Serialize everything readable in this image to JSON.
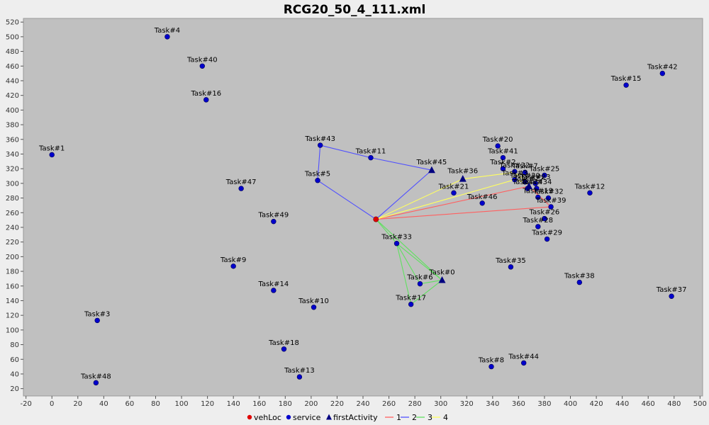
{
  "chart_data": {
    "type": "scatter",
    "title": "RCG20_50_4_111.xml",
    "xlabel": "",
    "ylabel": "",
    "xlim": [
      -22,
      502
    ],
    "ylim": [
      10,
      525
    ],
    "x_ticks": [
      -20,
      0,
      20,
      40,
      60,
      80,
      100,
      120,
      140,
      160,
      180,
      200,
      220,
      240,
      260,
      280,
      300,
      320,
      340,
      360,
      380,
      400,
      420,
      440,
      460,
      480,
      500
    ],
    "y_ticks": [
      20,
      40,
      60,
      80,
      100,
      120,
      140,
      160,
      180,
      200,
      220,
      240,
      260,
      280,
      300,
      320,
      340,
      360,
      380,
      400,
      420,
      440,
      460,
      480,
      500,
      520
    ],
    "grid": false,
    "legend_position": "bottom",
    "colors": {
      "background": "#c0c0c0",
      "vehLoc": "#e00000",
      "service": "#0000cc",
      "firstActivity": "#000080",
      "route_1": "#ff6060",
      "route_2": "#5050ff",
      "route_3": "#60e060",
      "route_4": "#ffff60"
    },
    "legend": [
      {
        "name": "vehLoc",
        "marker": "dot",
        "color": "#e00000"
      },
      {
        "name": "service",
        "marker": "dot",
        "color": "#0000cc"
      },
      {
        "name": "firstActivity",
        "marker": "triangle",
        "color": "#000080"
      },
      {
        "name": "1",
        "marker": "line",
        "color": "#ff6060"
      },
      {
        "name": "2",
        "marker": "line",
        "color": "#5050ff"
      },
      {
        "name": "3",
        "marker": "line",
        "color": "#60e060"
      },
      {
        "name": "4",
        "marker": "line",
        "color": "#ffff60"
      }
    ],
    "vehLoc": {
      "x": 250,
      "y": 251
    },
    "points": [
      {
        "label": "Task#4",
        "x": 89,
        "y": 500
      },
      {
        "label": "Task#40",
        "x": 116,
        "y": 460
      },
      {
        "label": "Task#16",
        "x": 119,
        "y": 414
      },
      {
        "label": "Task#1",
        "x": 0,
        "y": 339
      },
      {
        "label": "Task#43",
        "x": 207,
        "y": 352
      },
      {
        "label": "Task#11",
        "x": 246,
        "y": 335
      },
      {
        "label": "Task#5",
        "x": 205,
        "y": 304
      },
      {
        "label": "Task#47",
        "x": 146,
        "y": 293
      },
      {
        "label": "Task#49",
        "x": 171,
        "y": 248
      },
      {
        "label": "Task#9",
        "x": 140,
        "y": 187
      },
      {
        "label": "Task#14",
        "x": 171,
        "y": 154
      },
      {
        "label": "Task#10",
        "x": 202,
        "y": 131
      },
      {
        "label": "Task#3",
        "x": 35,
        "y": 113
      },
      {
        "label": "Task#48",
        "x": 34,
        "y": 28
      },
      {
        "label": "Task#18",
        "x": 179,
        "y": 74
      },
      {
        "label": "Task#13",
        "x": 191,
        "y": 36
      },
      {
        "label": "Task#33",
        "x": 266,
        "y": 218
      },
      {
        "label": "Task#6",
        "x": 284,
        "y": 163
      },
      {
        "label": "Task#17",
        "x": 277,
        "y": 135
      },
      {
        "label": "Task#21",
        "x": 310,
        "y": 287
      },
      {
        "label": "Task#46",
        "x": 332,
        "y": 273
      },
      {
        "label": "Task#20",
        "x": 344,
        "y": 351
      },
      {
        "label": "Task#41",
        "x": 348,
        "y": 335
      },
      {
        "label": "Task#2",
        "x": 348,
        "y": 320
      },
      {
        "label": "Task#22",
        "x": 357,
        "y": 316
      },
      {
        "label": "Task#7",
        "x": 365,
        "y": 315
      },
      {
        "label": "Task#25",
        "x": 380,
        "y": 311
      },
      {
        "label": "Task#3_",
        "x": 357,
        "y": 305
      },
      {
        "label": "Task#30",
        "x": 365,
        "y": 302
      },
      {
        "label": "Task#23",
        "x": 373,
        "y": 300
      },
      {
        "label": "Task#24",
        "x": 367,
        "y": 293
      },
      {
        "label": "Task#34",
        "x": 374,
        "y": 293
      },
      {
        "label": "Task#19",
        "x": 375,
        "y": 281
      },
      {
        "label": "Task#32",
        "x": 383,
        "y": 280
      },
      {
        "label": "Task#39",
        "x": 385,
        "y": 268
      },
      {
        "label": "Task#26",
        "x": 380,
        "y": 252
      },
      {
        "label": "Task#28",
        "x": 375,
        "y": 241
      },
      {
        "label": "Task#29",
        "x": 382,
        "y": 224
      },
      {
        "label": "Task#35",
        "x": 354,
        "y": 186
      },
      {
        "label": "Task#38",
        "x": 407,
        "y": 165
      },
      {
        "label": "Task#8",
        "x": 339,
        "y": 50
      },
      {
        "label": "Task#44",
        "x": 364,
        "y": 55
      },
      {
        "label": "Task#12",
        "x": 415,
        "y": 287
      },
      {
        "label": "Task#15",
        "x": 443,
        "y": 434
      },
      {
        "label": "Task#42",
        "x": 471,
        "y": 450
      },
      {
        "label": "Task#37",
        "x": 478,
        "y": 146
      }
    ],
    "label_text": {
      "Task#4": "Task#4",
      "Task#40": "Task#40",
      "Task#16": "Task#16",
      "Task#1": "Task#1",
      "Task#43": "Task#43",
      "Task#11": "Task#11",
      "Task#5": "Task#5",
      "Task#47": "Task#47",
      "Task#49": "Task#49",
      "Task#9": "Task#9",
      "Task#14": "Task#14",
      "Task#10": "Task#10",
      "Task#3": "Task#3",
      "Task#48": "Task#48",
      "Task#18": "Task#18",
      "Task#13": "Task#13",
      "Task#33": "Task#33",
      "Task#6": "Task#6",
      "Task#17": "Task#17",
      "Task#21": "Task#21",
      "Task#46": "Task#46",
      "Task#20": "Task#20",
      "Task#41": "Task#41",
      "Task#2": "Task#2",
      "Task#22": "Task#22",
      "Task#7": "Task#7",
      "Task#25": "Task#25",
      "Task#3_": "Task#3",
      "Task#30": "Task#30",
      "Task#23": "Task#23",
      "Task#24": "Task#24",
      "Task#34": "Task#34",
      "Task#19": "Task#19",
      "Task#32": "Task#32",
      "Task#39": "Task#39",
      "Task#26": "Task#26",
      "Task#28": "Task#28",
      "Task#29": "Task#29",
      "Task#35": "Task#35",
      "Task#38": "Task#38",
      "Task#8": "Task#8",
      "Task#44": "Task#44",
      "Task#12": "Task#12",
      "Task#15": "Task#15",
      "Task#42": "Task#42",
      "Task#37": "Task#37",
      "Task#45": "Task#45",
      "Task#36": "Task#36",
      "Task#0": "Task#0",
      "Task#27": "Task#27"
    },
    "firstActivity": [
      {
        "label": "Task#45",
        "x": 293,
        "y": 318
      },
      {
        "label": "Task#36",
        "x": 317,
        "y": 306
      },
      {
        "label": "Task#0",
        "x": 301,
        "y": 168
      },
      {
        "label": "Task#27",
        "x": 368,
        "y": 296
      }
    ],
    "routes": [
      {
        "name": "1",
        "points": [
          [
            250,
            251
          ],
          [
            368,
            296
          ],
          [
            385,
            268
          ],
          [
            250,
            251
          ]
        ]
      },
      {
        "name": "2",
        "points": [
          [
            250,
            251
          ],
          [
            205,
            304
          ],
          [
            207,
            352
          ],
          [
            246,
            335
          ],
          [
            293,
            318
          ],
          [
            250,
            251
          ]
        ]
      },
      {
        "name": "3",
        "points": [
          [
            250,
            251
          ],
          [
            266,
            218
          ],
          [
            301,
            168
          ],
          [
            277,
            135
          ],
          [
            266,
            218
          ],
          [
            284,
            163
          ],
          [
            301,
            168
          ],
          [
            250,
            251
          ]
        ]
      },
      {
        "name": "4",
        "points": [
          [
            250,
            251
          ],
          [
            317,
            306
          ],
          [
            357,
            315
          ],
          [
            368,
            300
          ],
          [
            357,
            305
          ],
          [
            250,
            251
          ]
        ]
      }
    ]
  }
}
